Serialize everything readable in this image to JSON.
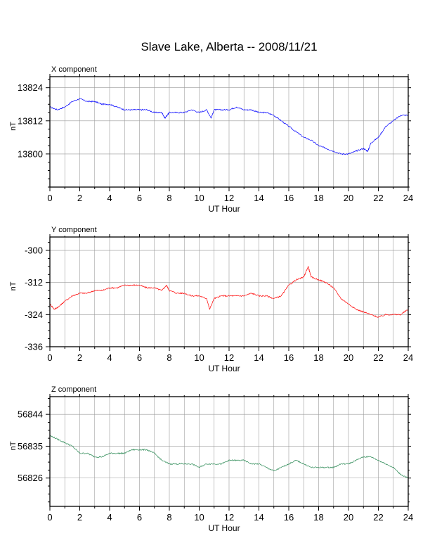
{
  "title": "Slave Lake, Alberta -- 2008/11/21",
  "chart_data": [
    {
      "type": "line",
      "panel_label": "X component",
      "xlabel": "UT Hour",
      "ylabel": "nT",
      "xlim": [
        0,
        24
      ],
      "xticks": [
        0,
        2,
        4,
        6,
        8,
        10,
        12,
        14,
        16,
        18,
        20,
        22,
        24
      ],
      "ylim": [
        13788,
        13828
      ],
      "yticks": [
        13800,
        13812,
        13824
      ],
      "grid": true,
      "color": "#0000ff",
      "series": [
        {
          "x": [
            0,
            0.5,
            1.0,
            1.5,
            2.0,
            2.5,
            3.0,
            3.5,
            4.0,
            4.5,
            5.0,
            5.5,
            6.0,
            6.5,
            7.0,
            7.5,
            7.7,
            8.0,
            8.5,
            9.0,
            9.5,
            10.0,
            10.5,
            10.8,
            11.0,
            11.5,
            12.0,
            12.5,
            13.0,
            13.5,
            14.0,
            14.5,
            15.0,
            15.5,
            16.0,
            16.5,
            17.0,
            17.5,
            18.0,
            18.5,
            19.0,
            19.5,
            20.0,
            20.5,
            21.0,
            21.3,
            21.5,
            22.0,
            22.5,
            23.0,
            23.5,
            24.0
          ],
          "values": [
            13817,
            13816,
            13817,
            13819,
            13820,
            13819,
            13819,
            13818,
            13818,
            13817,
            13816,
            13816,
            13816,
            13816,
            13815,
            13815,
            13813,
            13815,
            13815,
            13815,
            13816,
            13815,
            13816,
            13813,
            13816,
            13816,
            13816,
            13817,
            13816,
            13816,
            13815,
            13815,
            13814,
            13812,
            13810,
            13808,
            13806,
            13805,
            13803,
            13802,
            13801,
            13800,
            13800,
            13801,
            13802,
            13801,
            13804,
            13806,
            13810,
            13812,
            13814,
            13814
          ]
        }
      ]
    },
    {
      "type": "line",
      "panel_label": "Y component",
      "xlabel": "UT Hour",
      "ylabel": "nT",
      "xlim": [
        0,
        24
      ],
      "xticks": [
        0,
        2,
        4,
        6,
        8,
        10,
        12,
        14,
        16,
        18,
        20,
        22,
        24
      ],
      "ylim": [
        -336,
        -295
      ],
      "yticks": [
        -300,
        -312,
        -324,
        -336
      ],
      "grid": true,
      "color": "#ff0000",
      "series": [
        {
          "x": [
            0,
            0.3,
            0.6,
            1.0,
            1.5,
            2.0,
            2.5,
            3.0,
            3.5,
            4.0,
            4.5,
            5.0,
            5.5,
            6.0,
            6.5,
            7.0,
            7.5,
            7.8,
            8.0,
            8.5,
            9.0,
            9.5,
            10.0,
            10.5,
            10.7,
            11.0,
            11.5,
            12.0,
            12.5,
            13.0,
            13.5,
            14.0,
            14.5,
            15.0,
            15.5,
            16.0,
            16.5,
            17.0,
            17.3,
            17.5,
            18.0,
            18.5,
            19.0,
            19.5,
            20.0,
            20.5,
            21.0,
            21.5,
            22.0,
            22.5,
            23.0,
            23.5,
            24.0
          ],
          "values": [
            -320,
            -322,
            -321,
            -319,
            -317,
            -316,
            -316,
            -315,
            -315,
            -314,
            -314,
            -313,
            -313,
            -313,
            -314,
            -314,
            -315,
            -313,
            -315,
            -316,
            -316,
            -317,
            -317,
            -318,
            -322,
            -318,
            -317,
            -317,
            -317,
            -317,
            -316,
            -317,
            -317,
            -318,
            -317,
            -313,
            -311,
            -310,
            -306,
            -310,
            -311,
            -312,
            -314,
            -318,
            -320,
            -322,
            -323,
            -324,
            -325,
            -324,
            -324,
            -324,
            -322
          ]
        }
      ]
    },
    {
      "type": "line",
      "panel_label": "Z component",
      "xlabel": "UT Hour",
      "ylabel": "nT",
      "xlim": [
        0,
        24
      ],
      "xticks": [
        0,
        2,
        4,
        6,
        8,
        10,
        12,
        14,
        16,
        18,
        20,
        22,
        24
      ],
      "ylim": [
        56818,
        56849
      ],
      "yticks": [
        56826,
        56835,
        56844
      ],
      "grid": true,
      "color": "#2e8b57",
      "series": [
        {
          "x": [
            0,
            0.5,
            1.0,
            1.5,
            2.0,
            2.5,
            3.0,
            3.5,
            4.0,
            4.5,
            5.0,
            5.5,
            6.0,
            6.5,
            7.0,
            7.5,
            8.0,
            8.5,
            9.0,
            9.5,
            10.0,
            10.5,
            11.0,
            11.5,
            12.0,
            12.5,
            13.0,
            13.5,
            14.0,
            14.5,
            15.0,
            15.5,
            16.0,
            16.5,
            17.0,
            17.5,
            18.0,
            18.5,
            19.0,
            19.5,
            20.0,
            20.5,
            21.0,
            21.5,
            22.0,
            22.5,
            23.0,
            23.5,
            24.0
          ],
          "values": [
            56838,
            56837,
            56836,
            56835,
            56833,
            56833,
            56832,
            56832,
            56833,
            56833,
            56833,
            56834,
            56834,
            56834,
            56833,
            56831,
            56830,
            56830,
            56830,
            56830,
            56829,
            56830,
            56830,
            56830,
            56831,
            56831,
            56831,
            56830,
            56830,
            56829,
            56828,
            56829,
            56830,
            56831,
            56830,
            56829,
            56829,
            56829,
            56829,
            56830,
            56830,
            56831,
            56832,
            56832,
            56831,
            56830,
            56829,
            56827,
            56826
          ]
        }
      ]
    }
  ]
}
